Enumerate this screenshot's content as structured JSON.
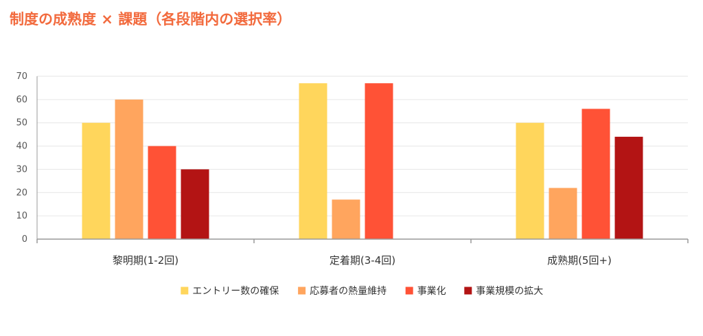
{
  "chart_data": {
    "type": "bar",
    "title": "制度の成熟度 × 課題（各段階内の選択率）",
    "xlabel": "",
    "ylabel": "",
    "categories": [
      "黎明期(1-2回)",
      "定着期(3-4回)",
      "成熟期(5回+)"
    ],
    "series": [
      {
        "name": "エントリー数の確保",
        "color": "#ffd65c",
        "values": [
          50,
          67,
          50
        ]
      },
      {
        "name": "応募者の熱量維持",
        "color": "#ffa55e",
        "values": [
          60,
          17,
          22
        ]
      },
      {
        "name": "事業化",
        "color": "#ff5236",
        "values": [
          40,
          67,
          56
        ]
      },
      {
        "name": "事業規模の拡大",
        "color": "#b31414",
        "values": [
          30,
          null,
          44
        ]
      }
    ],
    "ylim": [
      0,
      70
    ],
    "yticks": [
      0,
      10,
      20,
      30,
      40,
      50,
      60,
      70
    ],
    "grid": true,
    "legend_position": "bottom"
  }
}
